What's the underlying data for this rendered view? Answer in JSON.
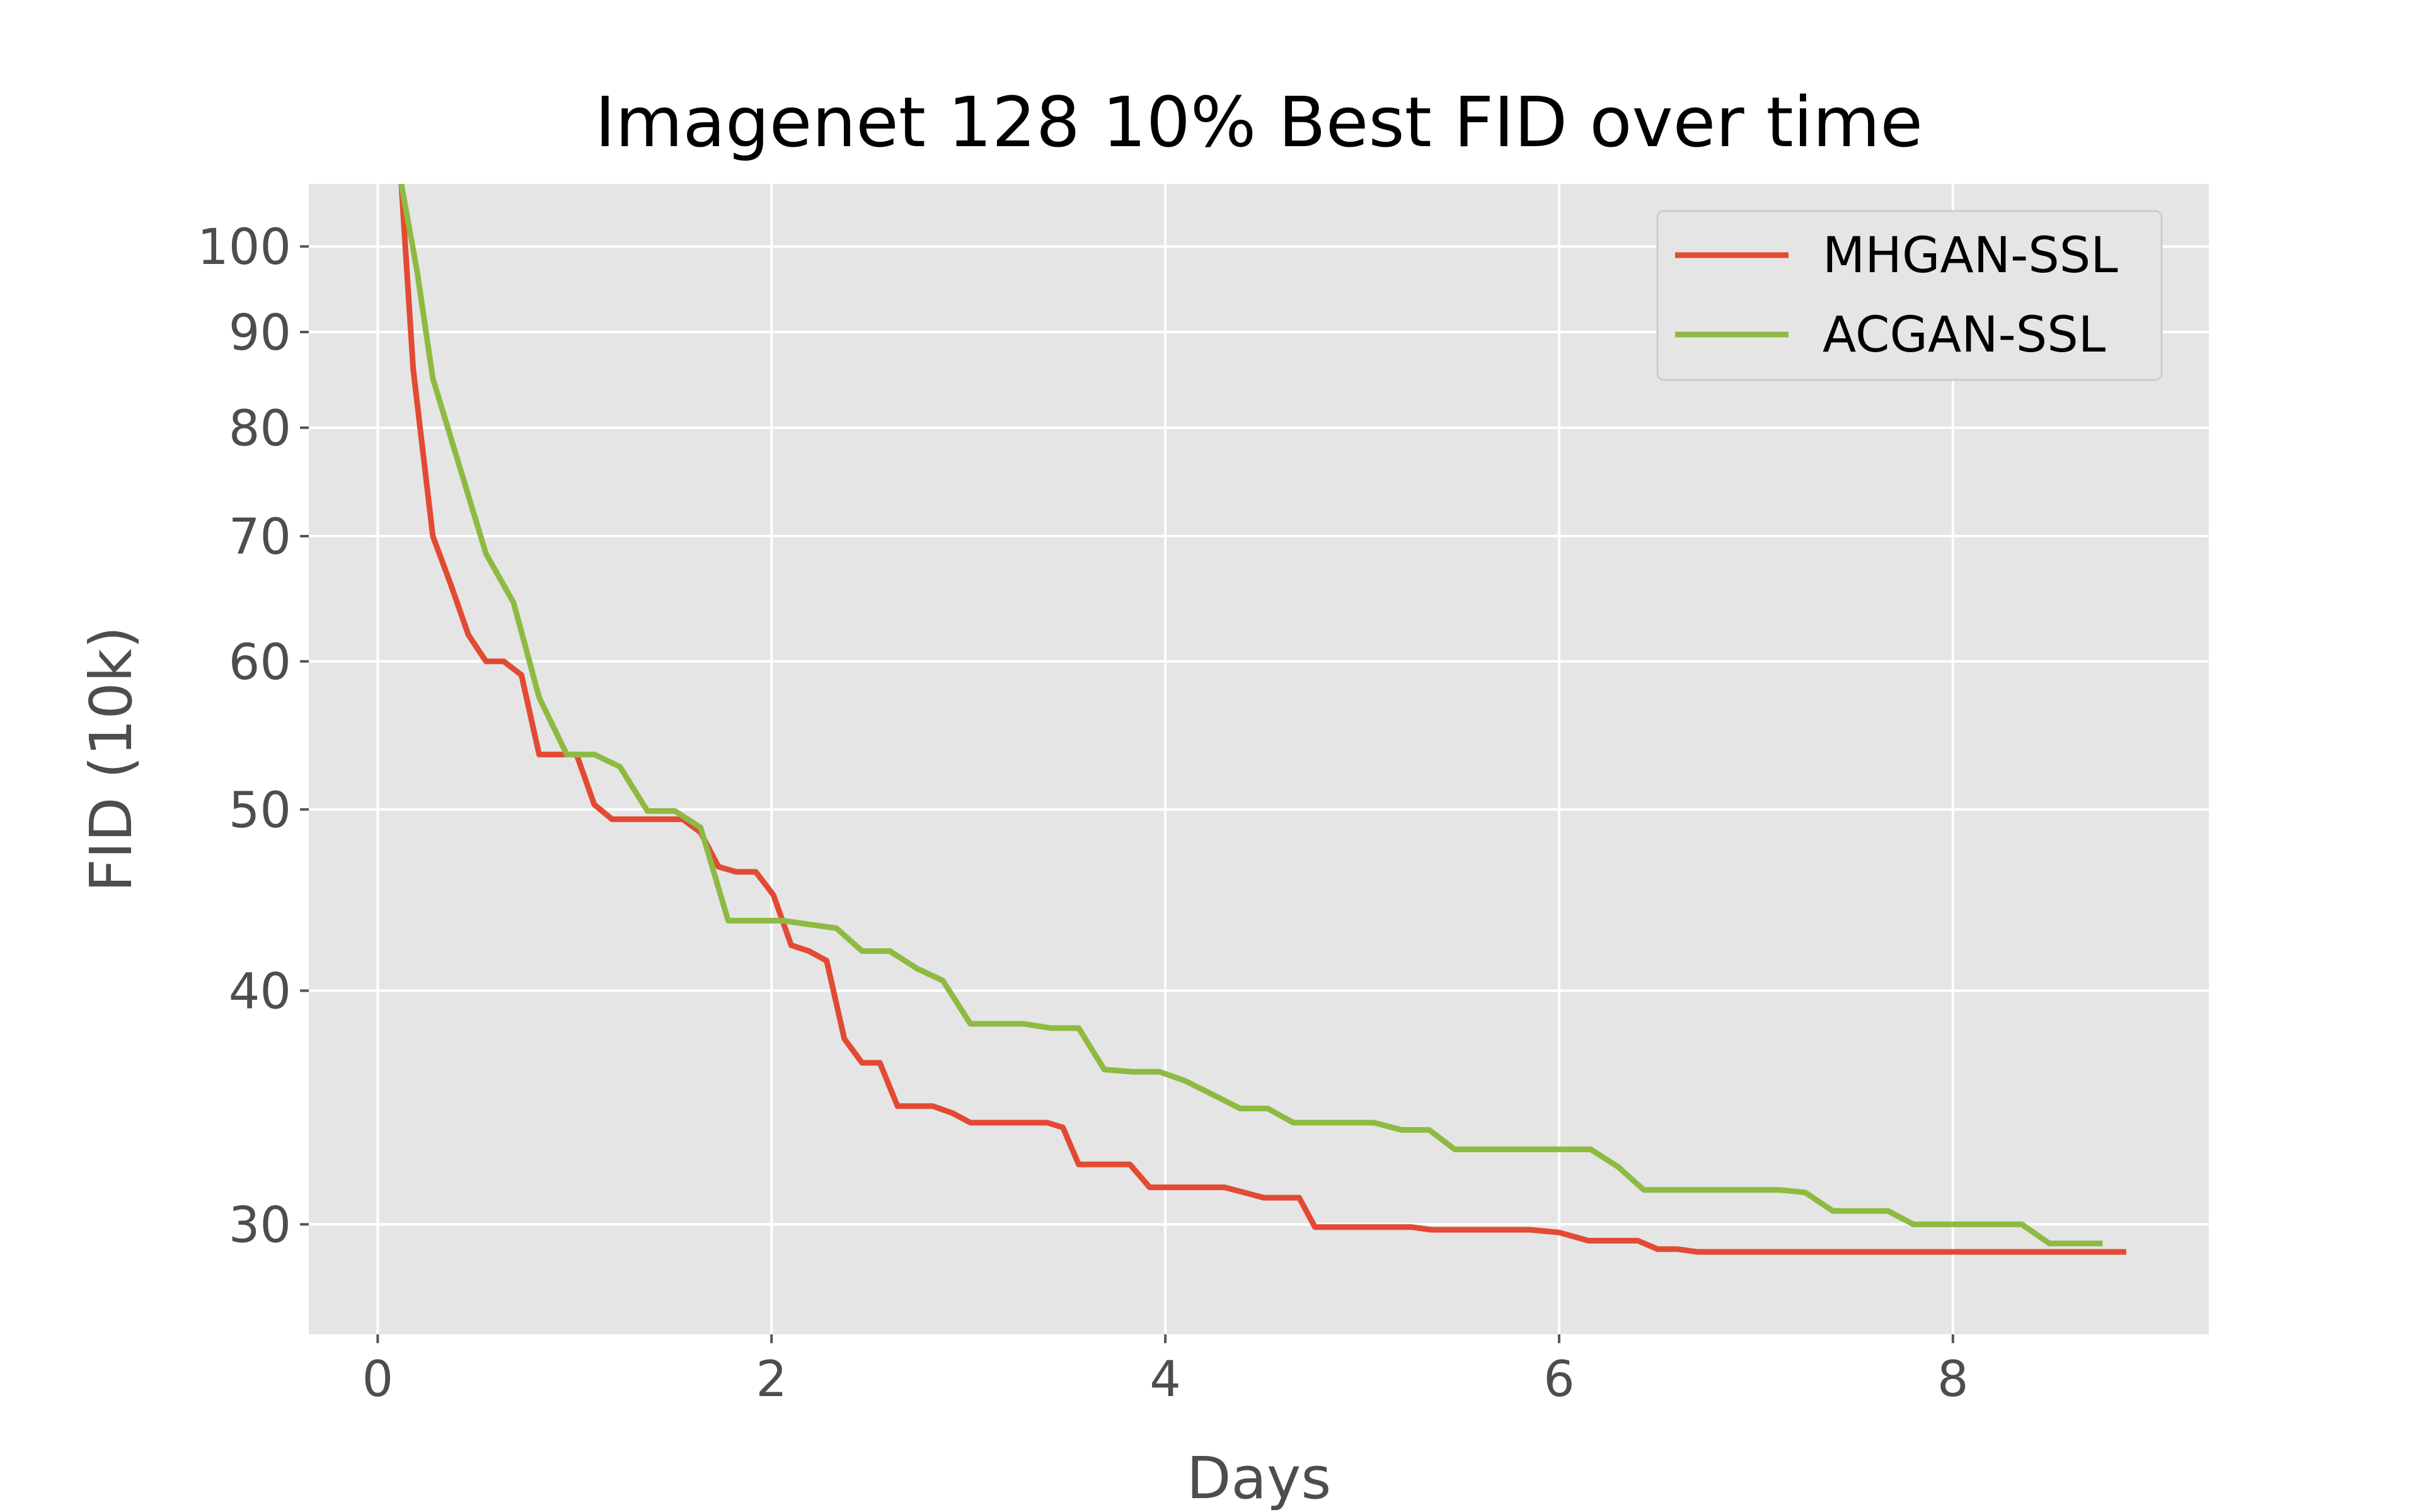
{
  "chart_data": {
    "type": "line",
    "title": "Imagenet 128 10% Best FID over time",
    "xlabel": "Days",
    "ylabel": "FID (10k)",
    "xlim": [
      -0.35,
      9.3
    ],
    "ylim": [
      26.2,
      108
    ],
    "yscale": "log",
    "xticks": [
      0,
      2,
      4,
      6,
      8
    ],
    "xtick_labels": [
      "0",
      "2",
      "4",
      "6",
      "8"
    ],
    "yticks": [
      30,
      40,
      50,
      60,
      70,
      80,
      90,
      100
    ],
    "ytick_labels": [
      "30",
      "40",
      "50",
      "60",
      "70",
      "80",
      "90",
      "100"
    ],
    "grid": true,
    "legend_position": "upper right",
    "series": [
      {
        "name": "MHGAN-SSL",
        "color": "#E24A33",
        "x": [
          0.12,
          0.18,
          0.28,
          0.37,
          0.46,
          0.55,
          0.64,
          0.73,
          0.82,
          0.92,
          1.01,
          1.1,
          1.19,
          1.28,
          1.37,
          1.46,
          1.55,
          1.64,
          1.73,
          1.82,
          1.92,
          2.01,
          2.1,
          2.19,
          2.28,
          2.37,
          2.46,
          2.55,
          2.64,
          2.73,
          2.82,
          2.92,
          3.01,
          3.1,
          3.2,
          3.3,
          3.4,
          3.48,
          3.56,
          3.64,
          3.73,
          3.82,
          3.92,
          4.01,
          4.1,
          4.2,
          4.3,
          4.4,
          4.5,
          4.6,
          4.68,
          4.76,
          4.85,
          4.95,
          5.05,
          5.15,
          5.25,
          5.35,
          5.45,
          5.55,
          5.65,
          5.75,
          5.85,
          6.0,
          6.15,
          6.3,
          6.4,
          6.5,
          6.6,
          6.7,
          6.8,
          6.9,
          7.0,
          7.2,
          7.5,
          7.8,
          8.1,
          8.4,
          8.6,
          8.88
        ],
        "values": [
          108,
          86,
          70,
          66,
          62,
          60,
          60,
          59,
          53.5,
          53.5,
          53.5,
          50.3,
          49.4,
          49.4,
          49.4,
          49.4,
          49.4,
          48.6,
          46.6,
          46.3,
          46.3,
          45,
          42.3,
          42,
          41.5,
          37.7,
          36.6,
          36.6,
          34.7,
          34.7,
          34.7,
          34.4,
          34,
          34,
          34,
          34,
          34,
          33.8,
          32.3,
          32.3,
          32.3,
          32.3,
          31.4,
          31.4,
          31.4,
          31.4,
          31.4,
          31.2,
          31,
          31,
          31,
          29.9,
          29.9,
          29.9,
          29.9,
          29.9,
          29.9,
          29.8,
          29.8,
          29.8,
          29.8,
          29.8,
          29.8,
          29.7,
          29.4,
          29.4,
          29.4,
          29.1,
          29.1,
          29,
          29,
          29,
          29,
          29,
          29,
          29,
          29,
          29,
          29,
          29
        ]
      },
      {
        "name": "ACGAN-SSL",
        "color": "#8EBA42",
        "x": [
          0.12,
          0.2,
          0.28,
          0.42,
          0.55,
          0.69,
          0.82,
          0.96,
          1.1,
          1.23,
          1.37,
          1.51,
          1.64,
          1.78,
          1.92,
          2.06,
          2.19,
          2.33,
          2.46,
          2.6,
          2.74,
          2.87,
          3.01,
          3.15,
          3.28,
          3.42,
          3.56,
          3.69,
          3.83,
          3.97,
          4.1,
          4.24,
          4.38,
          4.52,
          4.65,
          4.79,
          4.93,
          5.06,
          5.2,
          5.34,
          5.47,
          5.61,
          5.75,
          5.89,
          6.02,
          6.16,
          6.3,
          6.43,
          6.57,
          6.71,
          6.84,
          6.98,
          7.12,
          7.25,
          7.39,
          7.53,
          7.67,
          7.8,
          7.94,
          8.08,
          8.21,
          8.35,
          8.49,
          8.62,
          8.76
        ],
        "values": [
          108,
          97,
          85,
          76,
          68.5,
          64.5,
          57.4,
          53.5,
          53.5,
          52.7,
          49.9,
          49.9,
          48.9,
          43.6,
          43.6,
          43.6,
          43.4,
          43.2,
          42,
          42,
          41.1,
          40.5,
          38.4,
          38.4,
          38.4,
          38.2,
          38.2,
          36.3,
          36.2,
          36.2,
          35.8,
          35.2,
          34.6,
          34.6,
          34,
          34,
          34,
          34,
          33.7,
          33.7,
          32.9,
          32.9,
          32.9,
          32.9,
          32.9,
          32.9,
          32.2,
          31.3,
          31.3,
          31.3,
          31.3,
          31.3,
          31.3,
          31.2,
          30.5,
          30.5,
          30.5,
          30,
          30,
          30,
          30,
          30,
          29.3,
          29.3,
          29.3
        ]
      }
    ]
  }
}
